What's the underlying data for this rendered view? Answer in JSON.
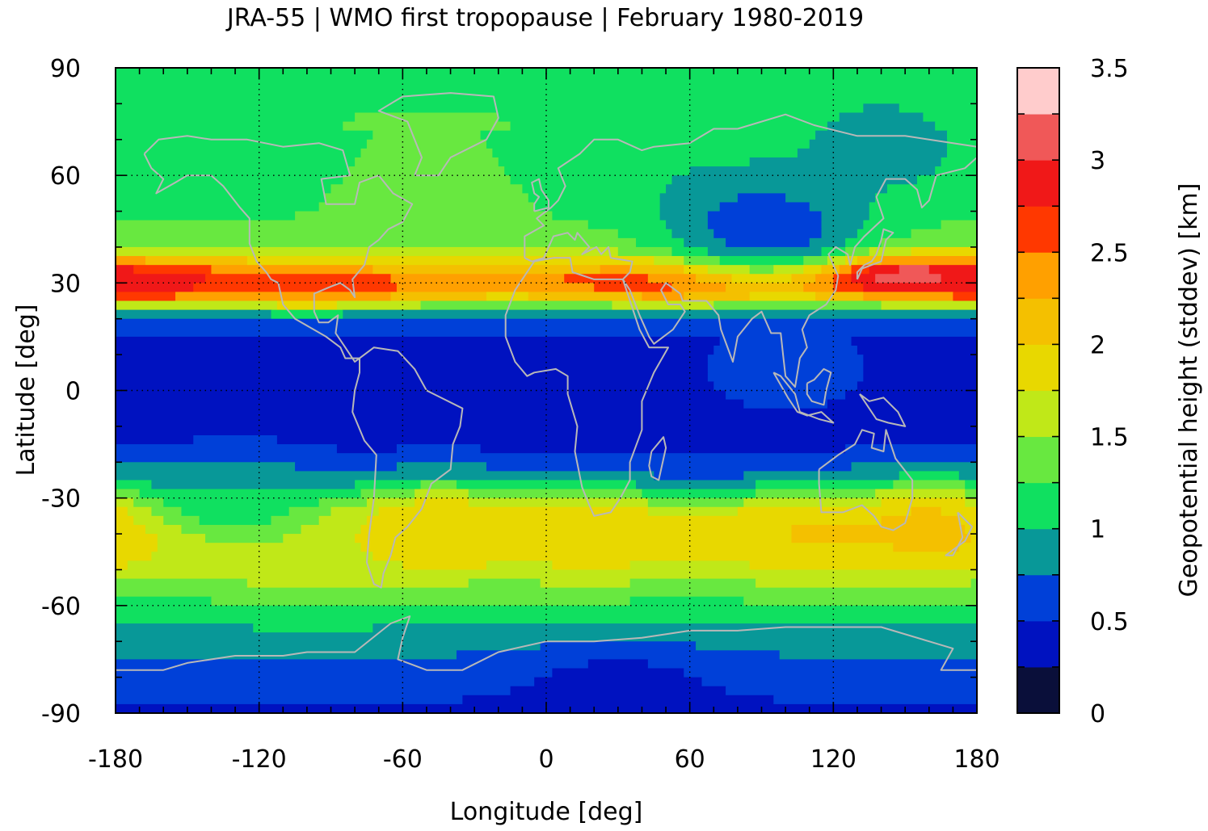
{
  "chart_data": {
    "type": "heatmap",
    "title": "JRA-55 | WMO first tropopause | February 1980-2019",
    "xlabel": "Longitude [deg]",
    "ylabel": "Latitude [deg]",
    "colorbar_label": "Geopotential height (stddev) [km]",
    "xlim": [
      -180,
      180
    ],
    "ylim": [
      -90,
      90
    ],
    "x_ticks": [
      -180,
      -120,
      -60,
      0,
      60,
      120,
      180
    ],
    "y_ticks": [
      -90,
      -60,
      -30,
      0,
      30,
      60,
      90
    ],
    "x_tick_labels": [
      "-180",
      "-120",
      "-60",
      "0",
      "60",
      "120",
      "180"
    ],
    "y_tick_labels": [
      "-90",
      "-60",
      "-30",
      "0",
      "30",
      "60",
      "90"
    ],
    "grid": true,
    "colorbar_range": [
      0,
      3.5
    ],
    "colorbar_ticks": [
      0,
      0.5,
      1,
      1.5,
      2,
      2.5,
      3,
      3.5
    ],
    "colorbar_tick_labels": [
      "0",
      "0.5",
      "1",
      "1.5",
      "2",
      "2.5",
      "3",
      "3.5"
    ],
    "levels": [
      0,
      0.25,
      0.5,
      0.75,
      1.0,
      1.25,
      1.5,
      1.75,
      2.0,
      2.25,
      2.5,
      2.75,
      3.0,
      3.25,
      3.5
    ],
    "level_colors": [
      "#0a0f3a",
      "#0012c0",
      "#0040d8",
      "#089898",
      "#10e060",
      "#68e840",
      "#c0e818",
      "#e8d800",
      "#f4c000",
      "#ffa000",
      "#ff3800",
      "#f01818",
      "#f05858",
      "#ffcccc"
    ],
    "zonal_profile": {
      "description": "approximate zonal-mean stddev by latitude",
      "lat": [
        -90,
        -80,
        -70,
        -62,
        -55,
        -48,
        -40,
        -34,
        -30,
        -25,
        -15,
        0,
        15,
        22,
        26,
        30,
        34,
        40,
        50,
        60,
        75,
        90
      ],
      "value": [
        0.45,
        0.6,
        0.85,
        1.1,
        1.3,
        1.6,
        1.9,
        1.6,
        1.0,
        0.6,
        0.4,
        0.4,
        0.45,
        0.9,
        1.9,
        2.6,
        2.1,
        1.4,
        1.2,
        1.1,
        1.25,
        1.15
      ]
    },
    "regional_anomalies": [
      {
        "lon": 145,
        "lat": 32,
        "value": 3.4
      },
      {
        "lon": -165,
        "lat": 30,
        "value": 2.9
      },
      {
        "lon": 60,
        "lat": 30,
        "value": 2.7
      },
      {
        "lon": -95,
        "lat": 29,
        "value": 2.6
      },
      {
        "lon": 140,
        "lat": 70,
        "value": 0.85
      },
      {
        "lon": 80,
        "lat": 50,
        "value": 0.9
      },
      {
        "lon": 95,
        "lat": 45,
        "value": 0.6
      },
      {
        "lon": 100,
        "lat": 5,
        "value": 0.6
      },
      {
        "lon": -50,
        "lat": 55,
        "value": 1.5
      },
      {
        "lon": -45,
        "lat": -38,
        "value": 2.0
      },
      {
        "lon": 20,
        "lat": -40,
        "value": 1.9
      },
      {
        "lon": 110,
        "lat": -40,
        "value": 2.0
      },
      {
        "lon": 165,
        "lat": -38,
        "value": 2.1
      },
      {
        "lon": -100,
        "lat": -45,
        "value": 1.75
      },
      {
        "lon": -130,
        "lat": -30,
        "value": 1.0
      },
      {
        "lon": 30,
        "lat": -85,
        "value": 0.35
      }
    ]
  }
}
